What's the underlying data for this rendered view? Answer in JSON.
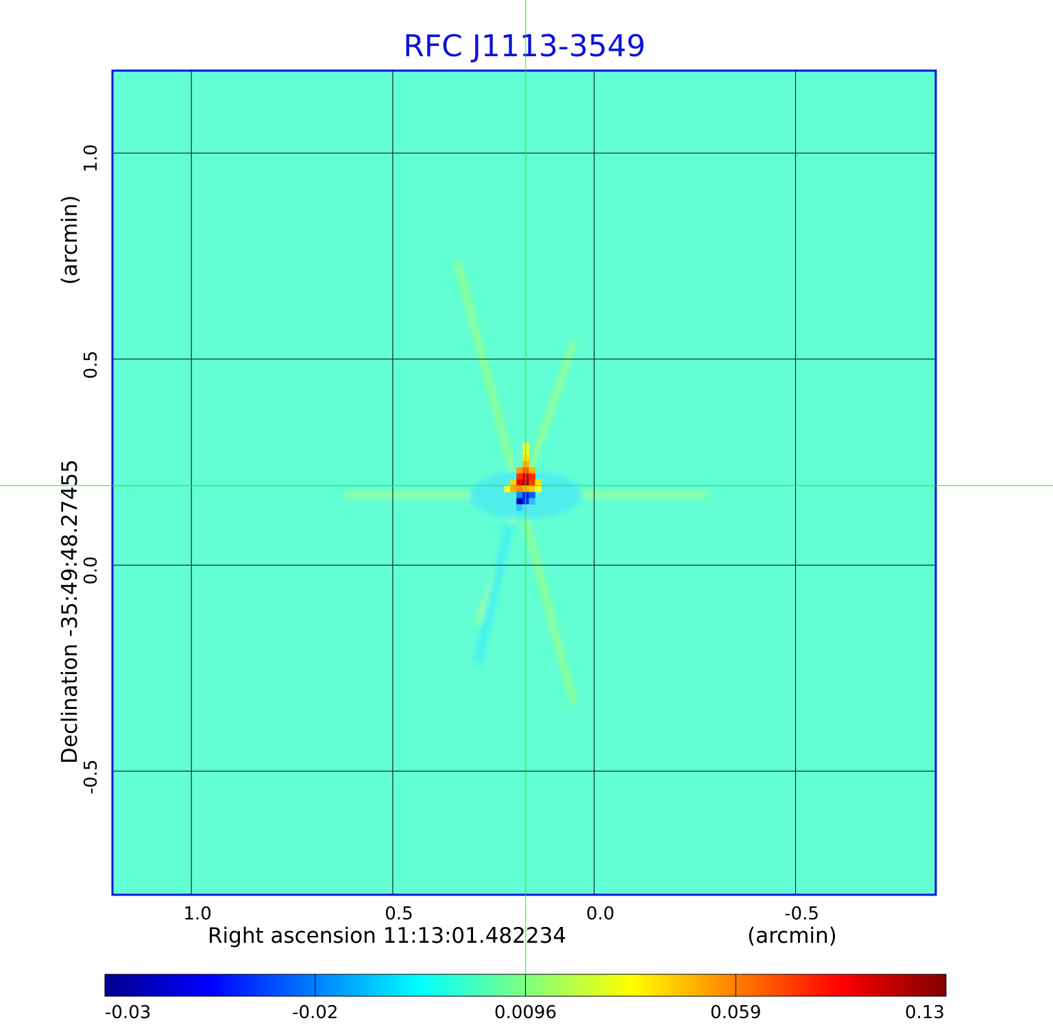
{
  "chart_data": {
    "type": "heatmap",
    "title": "RFC J1113-3549",
    "xlabel": "Right ascension  11:13:01.482234",
    "xunit": "(arcmin)",
    "ylabel": "Declination  -35:49:48.27455",
    "yunit": "(arcmin)",
    "x_ticks": [
      "1.0",
      "0.5",
      "0.0",
      "-0.5"
    ],
    "x_tick_values": [
      1.0,
      0.5,
      0.0,
      -0.5
    ],
    "y_ticks": [
      "1.0",
      "0.5",
      "0.0",
      "-0.5"
    ],
    "y_tick_values": [
      1.0,
      0.5,
      0.0,
      -0.5
    ],
    "xlim": [
      1.196,
      -0.848
    ],
    "ylim": [
      -0.8,
      1.2
    ],
    "grid": true,
    "crosshair": {
      "x": 0.17,
      "y": 0.193
    },
    "colorbar": {
      "ticks": [
        "-0.03",
        "-0.02",
        "0.0096",
        "0.059",
        "0.13"
      ],
      "colormap": "jet",
      "colors": [
        "#00008f",
        "#0000ff",
        "#007fff",
        "#00ffff",
        "#7fff7f",
        "#ffff00",
        "#ff7f00",
        "#ff0000",
        "#7f0000"
      ]
    },
    "background_color": "#62ffd4",
    "source_peak": {
      "x": 0.17,
      "y": 0.2,
      "value": 0.13
    },
    "source_min": {
      "x": 0.18,
      "y": 0.14,
      "value": -0.03
    }
  }
}
